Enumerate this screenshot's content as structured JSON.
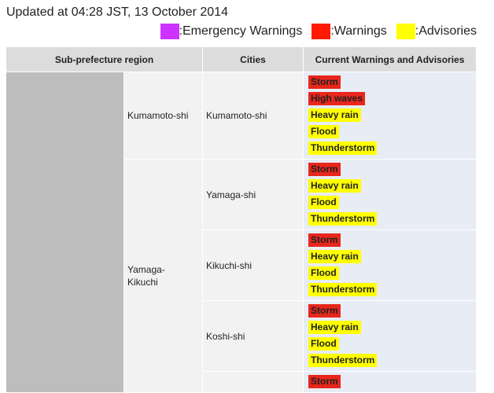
{
  "header": {
    "updated": "Updated at 04:28 JST, 13 October 2014"
  },
  "legend": [
    {
      "label": ":Emergency Warnings",
      "color": "#cc33ff"
    },
    {
      "label": ":Warnings",
      "color": "#ff1a00"
    },
    {
      "label": ":Advisories",
      "color": "#ffff00"
    }
  ],
  "table": {
    "columns": [
      "Sub-prefecture region",
      "Cities",
      "Current Warnings and Advisories"
    ],
    "groups": [
      {
        "name": "Kumamoto-shi",
        "cities": [
          {
            "name": "Kumamoto-shi",
            "alerts": [
              {
                "label": "Storm",
                "color": "#e8261c"
              },
              {
                "label": "High waves",
                "color": "#e8261c"
              },
              {
                "label": "Heavy rain",
                "color": "#ffff00"
              },
              {
                "label": "Flood",
                "color": "#ffff00"
              },
              {
                "label": "Thunderstorm",
                "color": "#ffff00"
              }
            ]
          }
        ]
      },
      {
        "name": "Yamaga-Kikuchi",
        "cities": [
          {
            "name": "Yamaga-shi",
            "alerts": [
              {
                "label": "Storm",
                "color": "#e8261c"
              },
              {
                "label": "Heavy rain",
                "color": "#ffff00"
              },
              {
                "label": "Flood",
                "color": "#ffff00"
              },
              {
                "label": "Thunderstorm",
                "color": "#ffff00"
              }
            ]
          },
          {
            "name": "Kikuchi-shi",
            "alerts": [
              {
                "label": "Storm",
                "color": "#e8261c"
              },
              {
                "label": "Heavy rain",
                "color": "#ffff00"
              },
              {
                "label": "Flood",
                "color": "#ffff00"
              },
              {
                "label": "Thunderstorm",
                "color": "#ffff00"
              }
            ]
          },
          {
            "name": "Koshi-shi",
            "alerts": [
              {
                "label": "Storm",
                "color": "#e8261c"
              },
              {
                "label": "Heavy rain",
                "color": "#ffff00"
              },
              {
                "label": "Flood",
                "color": "#ffff00"
              },
              {
                "label": "Thunderstorm",
                "color": "#ffff00"
              }
            ]
          },
          {
            "alerts": [
              {
                "label": "Storm",
                "color": "#e8261c"
              }
            ]
          }
        ]
      }
    ]
  }
}
